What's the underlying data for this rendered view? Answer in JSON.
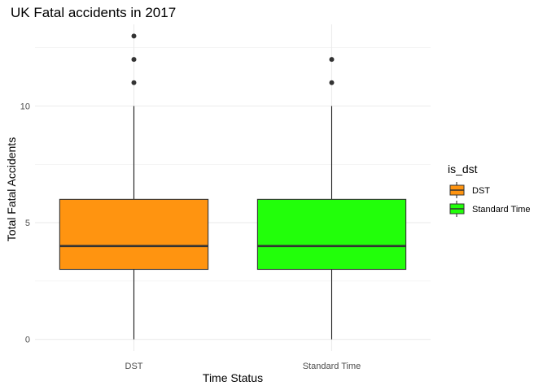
{
  "chart_data": {
    "type": "boxplot",
    "title": "UK Fatal accidents in 2017",
    "xlabel": "Time Status",
    "ylabel": "Total Fatal Accidents",
    "ylim": [
      -0.5,
      13.5
    ],
    "yticks": [
      0,
      5,
      10
    ],
    "grid": true,
    "legend": {
      "title": "is_dst",
      "placement": "right"
    },
    "categories": [
      "DST",
      "Standard Time"
    ],
    "series": [
      {
        "name": "DST",
        "color": "#ff9410",
        "min": 0,
        "q1": 3,
        "median": 4,
        "q3": 6,
        "max": 10,
        "outliers": [
          11,
          12,
          13
        ]
      },
      {
        "name": "Standard Time",
        "color": "#22ff0a",
        "min": 0,
        "q1": 3,
        "median": 4,
        "q3": 6,
        "max": 10,
        "outliers": [
          11,
          12
        ]
      }
    ]
  }
}
